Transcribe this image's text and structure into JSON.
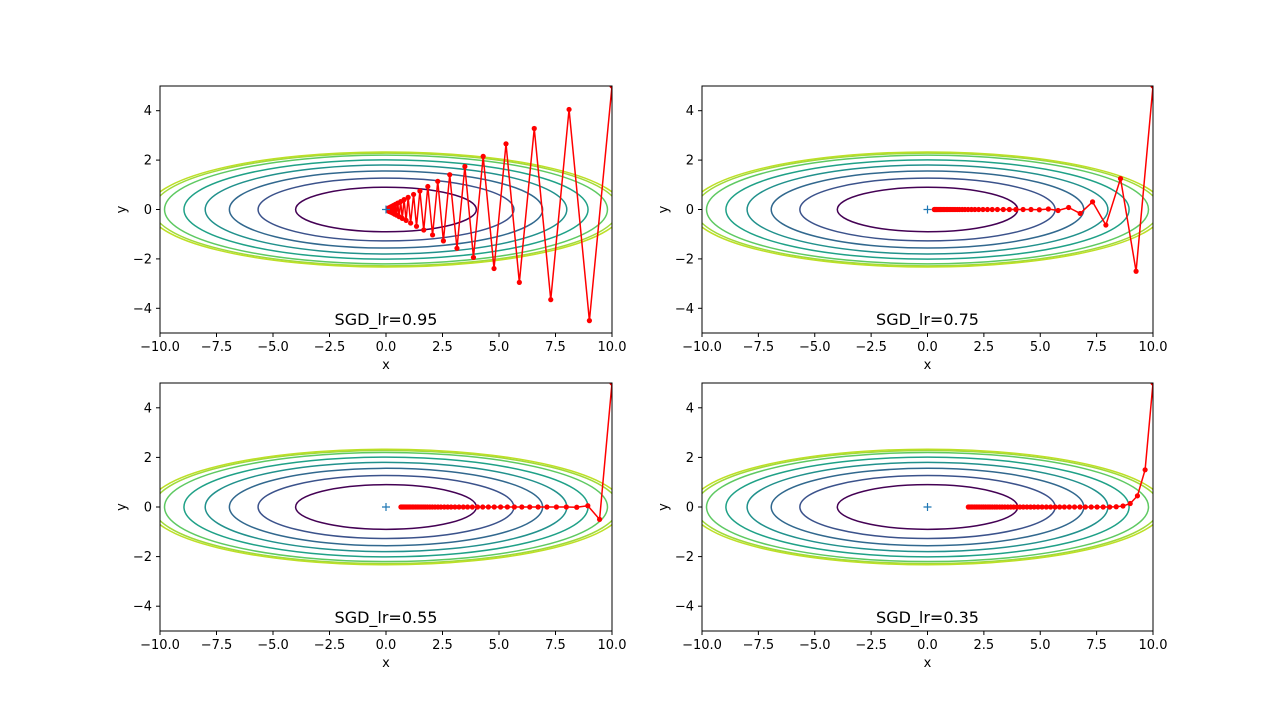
{
  "chart_data": [
    {
      "type": "line",
      "title": "SGD_lr=0.95",
      "xlabel": "x",
      "ylabel": "y",
      "xlim": [
        -10,
        10
      ],
      "ylim": [
        -5,
        5
      ],
      "xticks": [
        "−10.0",
        "−7.5",
        "−5.0",
        "−2.5",
        "0.0",
        "2.5",
        "5.0",
        "7.5",
        "10.0"
      ],
      "yticks": [
        "−4",
        "−2",
        "0",
        "2",
        "4"
      ],
      "marker_point": {
        "x": 0,
        "y": 0,
        "color": "#1f77b4"
      },
      "contour_semi_axes": [
        [
          4,
          0.9
        ],
        [
          5.66,
          1.27
        ],
        [
          6.93,
          1.56
        ],
        [
          8.0,
          1.8
        ],
        [
          8.94,
          2.01
        ],
        [
          9.8,
          2.2
        ],
        [
          10.3,
          2.28
        ],
        [
          10.5,
          2.33
        ]
      ],
      "contour_colors": [
        "#440154",
        "#3b528b",
        "#31688e",
        "#21918c",
        "#1fa187",
        "#5ec962",
        "#a0da39",
        "#bddf26"
      ],
      "series": [
        {
          "color": "#ff0000",
          "x": [
            10.0,
            9.0,
            8.1,
            7.29,
            6.56,
            5.9,
            5.31,
            4.78,
            4.3,
            3.87,
            3.49,
            3.14,
            2.82,
            2.54,
            2.29,
            2.06,
            1.85,
            1.67,
            1.5,
            1.35,
            1.22,
            1.09,
            0.98,
            0.89,
            0.8,
            0.72,
            0.65,
            0.58,
            0.52,
            0.47,
            0.42,
            0.38,
            0.34,
            0.31,
            0.28,
            0.25,
            0.23,
            0.2,
            0.18,
            0.16,
            0.15,
            0.13,
            0.12,
            0.11,
            0.1
          ],
          "y": [
            5.0,
            -4.5,
            4.05,
            -3.65,
            3.28,
            -2.95,
            2.66,
            -2.39,
            2.15,
            -1.94,
            1.74,
            -1.57,
            1.41,
            -1.27,
            1.14,
            -1.03,
            0.93,
            -0.83,
            0.75,
            -0.68,
            0.61,
            -0.55,
            0.49,
            -0.44,
            0.4,
            -0.36,
            0.32,
            -0.29,
            0.26,
            -0.23,
            0.21,
            -0.19,
            0.17,
            -0.15,
            0.14,
            -0.12,
            0.11,
            -0.1,
            0.09,
            -0.08,
            0.07,
            -0.07,
            0.06,
            -0.05,
            0.05
          ]
        }
      ]
    },
    {
      "type": "line",
      "title": "SGD_lr=0.75",
      "xlabel": "x",
      "ylabel": "y",
      "xlim": [
        -10,
        10
      ],
      "ylim": [
        -5,
        5
      ],
      "xticks": [
        "−10.0",
        "−7.5",
        "−5.0",
        "−2.5",
        "0.0",
        "2.5",
        "5.0",
        "7.5",
        "10.0"
      ],
      "yticks": [
        "−4",
        "−2",
        "0",
        "2",
        "4"
      ],
      "marker_point": {
        "x": 0,
        "y": 0,
        "color": "#1f77b4"
      },
      "contour_semi_axes": [
        [
          4,
          0.9
        ],
        [
          5.66,
          1.27
        ],
        [
          6.93,
          1.56
        ],
        [
          8.0,
          1.8
        ],
        [
          8.94,
          2.01
        ],
        [
          9.8,
          2.2
        ],
        [
          10.3,
          2.28
        ],
        [
          10.5,
          2.33
        ]
      ],
      "contour_colors": [
        "#440154",
        "#3b528b",
        "#31688e",
        "#21918c",
        "#1fa187",
        "#5ec962",
        "#a0da39",
        "#bddf26"
      ],
      "series": [
        {
          "color": "#ff0000",
          "x": [
            10.0,
            9.25,
            8.56,
            7.91,
            7.32,
            6.77,
            6.26,
            5.79,
            5.36,
            4.96,
            4.59,
            4.24,
            3.92,
            3.63,
            3.36,
            3.1,
            2.87,
            2.66,
            2.46,
            2.27,
            2.1,
            1.95,
            1.8,
            1.66,
            1.54,
            1.42,
            1.32,
            1.22,
            1.13,
            1.04,
            0.96,
            0.89,
            0.83,
            0.76,
            0.71,
            0.65,
            0.6,
            0.56,
            0.52,
            0.48,
            0.44,
            0.41,
            0.38,
            0.35,
            0.32,
            0.3
          ],
          "y": [
            5.0,
            -2.5,
            1.25,
            -0.63,
            0.31,
            -0.16,
            0.08,
            -0.04,
            0.02,
            -0.01,
            0.0,
            0.0,
            0.0,
            0.0,
            0.0,
            0.0,
            0.0,
            0.0,
            0.0,
            0.0,
            0.0,
            0.0,
            0.0,
            0.0,
            0.0,
            0.0,
            0.0,
            0.0,
            0.0,
            0.0,
            0.0,
            0.0,
            0.0,
            0.0,
            0.0,
            0.0,
            0.0,
            0.0,
            0.0,
            0.0,
            0.0,
            0.0,
            0.0,
            0.0,
            0.0,
            0.0
          ]
        }
      ]
    },
    {
      "type": "line",
      "title": "SGD_lr=0.55",
      "xlabel": "x",
      "ylabel": "y",
      "xlim": [
        -10,
        10
      ],
      "ylim": [
        -5,
        5
      ],
      "xticks": [
        "−10.0",
        "−7.5",
        "−5.0",
        "−2.5",
        "0.0",
        "2.5",
        "5.0",
        "7.5",
        "10.0"
      ],
      "yticks": [
        "−4",
        "−2",
        "0",
        "2",
        "4"
      ],
      "marker_point": {
        "x": 0,
        "y": 0,
        "color": "#1f77b4"
      },
      "contour_semi_axes": [
        [
          4,
          0.9
        ],
        [
          5.66,
          1.27
        ],
        [
          6.93,
          1.56
        ],
        [
          8.0,
          1.8
        ],
        [
          8.94,
          2.01
        ],
        [
          9.8,
          2.2
        ],
        [
          10.3,
          2.28
        ],
        [
          10.5,
          2.33
        ]
      ],
      "contour_colors": [
        "#440154",
        "#3b528b",
        "#31688e",
        "#21918c",
        "#1fa187",
        "#5ec962",
        "#a0da39",
        "#bddf26"
      ],
      "series": [
        {
          "color": "#ff0000",
          "x": [
            10.0,
            9.45,
            8.93,
            8.44,
            7.98,
            7.54,
            7.12,
            6.73,
            6.36,
            6.01,
            5.68,
            5.37,
            5.07,
            4.79,
            4.53,
            4.28,
            4.05,
            3.82,
            3.61,
            3.42,
            3.23,
            3.05,
            2.88,
            2.73,
            2.58,
            2.43,
            2.3,
            2.17,
            2.05,
            1.94,
            1.83,
            1.73,
            1.64,
            1.55,
            1.46,
            1.38,
            1.31,
            1.23,
            1.17,
            1.1,
            1.04,
            0.98,
            0.93,
            0.88,
            0.83,
            0.78,
            0.74,
            0.7,
            0.66
          ],
          "y": [
            5.0,
            -0.5,
            0.05,
            -0.01,
            0.0,
            0.0,
            0.0,
            0.0,
            0.0,
            0.0,
            0.0,
            0.0,
            0.0,
            0.0,
            0.0,
            0.0,
            0.0,
            0.0,
            0.0,
            0.0,
            0.0,
            0.0,
            0.0,
            0.0,
            0.0,
            0.0,
            0.0,
            0.0,
            0.0,
            0.0,
            0.0,
            0.0,
            0.0,
            0.0,
            0.0,
            0.0,
            0.0,
            0.0,
            0.0,
            0.0,
            0.0,
            0.0,
            0.0,
            0.0,
            0.0,
            0.0,
            0.0,
            0.0,
            0.0
          ]
        }
      ]
    },
    {
      "type": "line",
      "title": "SGD_lr=0.35",
      "xlabel": "x",
      "ylabel": "y",
      "xlim": [
        -10,
        10
      ],
      "ylim": [
        -5,
        5
      ],
      "xticks": [
        "−10.0",
        "−7.5",
        "−5.0",
        "−2.5",
        "0.0",
        "2.5",
        "5.0",
        "7.5",
        "10.0"
      ],
      "yticks": [
        "−4",
        "−2",
        "0",
        "2",
        "4"
      ],
      "marker_point": {
        "x": 0,
        "y": 0,
        "color": "#1f77b4"
      },
      "contour_semi_axes": [
        [
          4,
          0.9
        ],
        [
          5.66,
          1.27
        ],
        [
          6.93,
          1.56
        ],
        [
          8.0,
          1.8
        ],
        [
          8.94,
          2.01
        ],
        [
          9.8,
          2.2
        ],
        [
          10.3,
          2.28
        ],
        [
          10.5,
          2.33
        ]
      ],
      "contour_colors": [
        "#440154",
        "#3b528b",
        "#31688e",
        "#21918c",
        "#1fa187",
        "#5ec962",
        "#a0da39",
        "#bddf26"
      ],
      "series": [
        {
          "color": "#ff0000",
          "x": [
            10.0,
            9.65,
            9.31,
            8.99,
            8.67,
            8.37,
            8.08,
            7.79,
            7.52,
            7.26,
            7.0,
            6.76,
            6.52,
            6.29,
            6.07,
            5.86,
            5.66,
            5.46,
            5.27,
            5.08,
            4.9,
            4.73,
            4.57,
            4.41,
            4.25,
            4.1,
            3.96,
            3.82,
            3.69,
            3.56,
            3.43,
            3.31,
            3.2,
            3.08,
            2.98,
            2.87,
            2.77,
            2.68,
            2.58,
            2.49,
            2.41,
            2.32,
            2.24,
            2.16,
            2.09,
            2.01,
            1.94,
            1.88,
            1.81
          ],
          "y": [
            5.0,
            1.5,
            0.45,
            0.14,
            0.04,
            0.01,
            0.0,
            0.0,
            0.0,
            0.0,
            0.0,
            0.0,
            0.0,
            0.0,
            0.0,
            0.0,
            0.0,
            0.0,
            0.0,
            0.0,
            0.0,
            0.0,
            0.0,
            0.0,
            0.0,
            0.0,
            0.0,
            0.0,
            0.0,
            0.0,
            0.0,
            0.0,
            0.0,
            0.0,
            0.0,
            0.0,
            0.0,
            0.0,
            0.0,
            0.0,
            0.0,
            0.0,
            0.0,
            0.0,
            0.0,
            0.0,
            0.0,
            0.0,
            0.0
          ]
        }
      ]
    }
  ]
}
